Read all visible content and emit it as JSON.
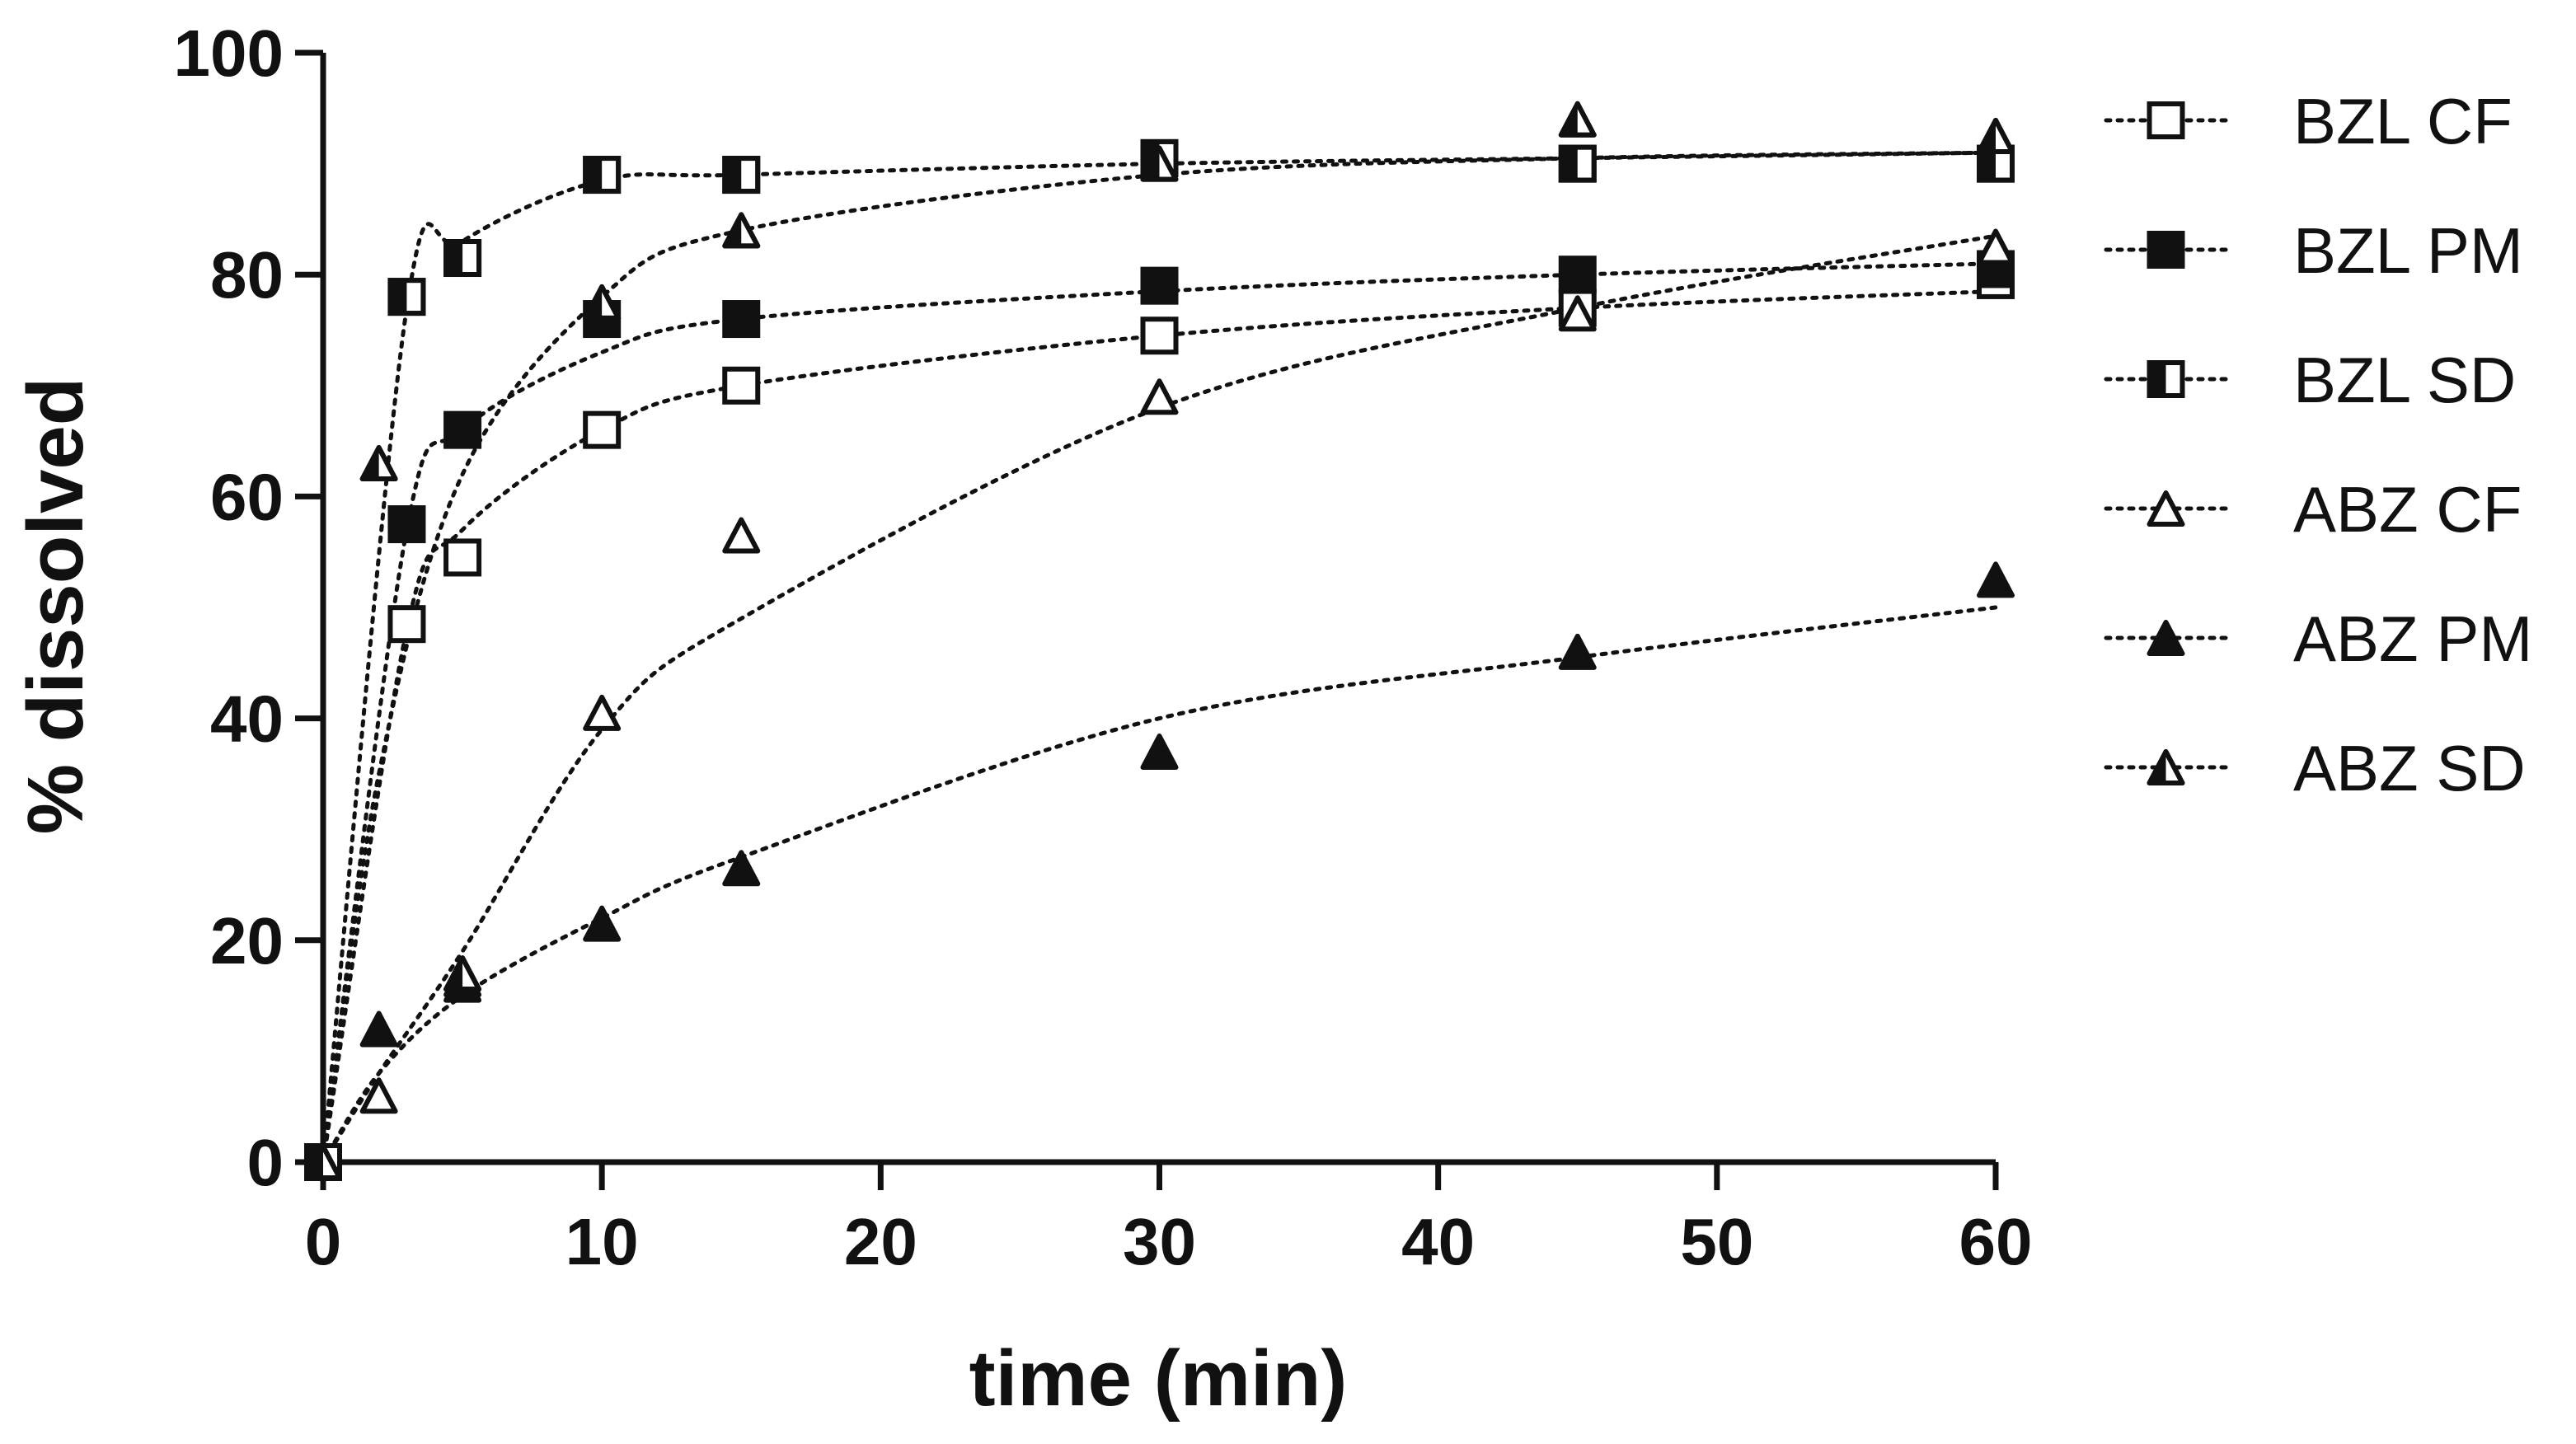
{
  "chart_data": {
    "type": "scatter",
    "title": "",
    "xlabel": "time (min)",
    "ylabel": "% dissolved",
    "xlim": [
      0,
      60
    ],
    "ylim": [
      0,
      100
    ],
    "x_ticks": [
      0,
      10,
      20,
      30,
      40,
      50,
      60
    ],
    "y_ticks": [
      0,
      20,
      40,
      60,
      80,
      100
    ],
    "x_tick_labels": [
      "0",
      "10",
      "20",
      "30",
      "40",
      "50",
      "60"
    ],
    "y_tick_labels": [
      "0",
      "20",
      "40",
      "60",
      "80",
      "100"
    ],
    "grid": false,
    "legend_position": "right",
    "fit_lines": "dotted",
    "series": [
      {
        "name": "BZL CF",
        "marker": "square-open",
        "x": [
          0,
          3,
          5,
          10,
          15,
          30,
          45,
          60
        ],
        "y": [
          0,
          48.5,
          54.5,
          66,
          70,
          74.5,
          77,
          79.5
        ],
        "fit_y": [
          0,
          48,
          57,
          66,
          70,
          74.5,
          77,
          78.5
        ]
      },
      {
        "name": "BZL PM",
        "marker": "square-filled",
        "x": [
          0,
          3,
          5,
          10,
          15,
          30,
          45,
          60
        ],
        "y": [
          0,
          57.5,
          66,
          76,
          76,
          79,
          80,
          80.5
        ],
        "fit_y": [
          0,
          57,
          66,
          73,
          76,
          78.5,
          80,
          81
        ]
      },
      {
        "name": "BZL SD",
        "marker": "square-half",
        "x": [
          0,
          3,
          5,
          10,
          15,
          30,
          45,
          60
        ],
        "y": [
          0,
          78,
          81.5,
          89,
          89,
          90.5,
          90,
          90
        ],
        "fit_y": [
          0,
          77,
          83,
          88.5,
          89,
          90,
          90.5,
          91
        ]
      },
      {
        "name": "ABZ CF",
        "marker": "triangle-open",
        "x": [
          0,
          2,
          5,
          10,
          15,
          30,
          45,
          60
        ],
        "y": [
          0,
          6,
          16.5,
          40.5,
          56.5,
          69,
          76.5,
          82.5
        ],
        "fit_y": [
          0,
          8,
          19,
          39,
          49,
          68,
          77,
          83.5
        ]
      },
      {
        "name": "ABZ PM",
        "marker": "triangle-filled",
        "x": [
          0,
          2,
          5,
          10,
          15,
          30,
          45,
          60
        ],
        "y": [
          0,
          12,
          16,
          21.5,
          26.5,
          37,
          46,
          52.5
        ],
        "fit_y": [
          0,
          8,
          15,
          22,
          27.5,
          40,
          45.5,
          50
        ]
      },
      {
        "name": "ABZ SD",
        "marker": "triangle-half",
        "x": [
          0,
          2,
          5,
          10,
          15,
          30,
          45,
          60
        ],
        "y": [
          0,
          63,
          17,
          77.5,
          84,
          90,
          94,
          92.5
        ],
        "fit_y": [
          0,
          35,
          62,
          78,
          84,
          89,
          90.5,
          91
        ]
      }
    ]
  }
}
